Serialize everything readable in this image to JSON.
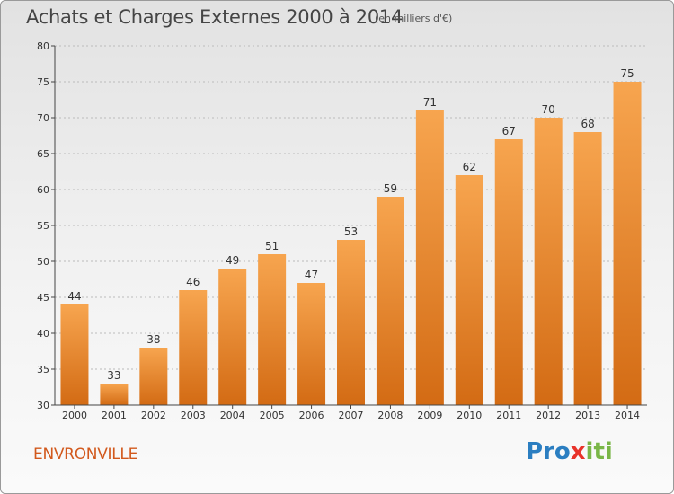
{
  "header": {
    "title": "Achats et Charges Externes 2000 à 2014",
    "subtitle": "(en milliers d'€)"
  },
  "footer": {
    "commune": "ENVRONVILLE",
    "logo": {
      "p1": "Pro",
      "x": "x",
      "p2": "iti"
    }
  },
  "colors": {
    "bar_light": "#f7a54f",
    "bar_dark": "#d36b14",
    "grid": "#bbbbbb",
    "commune": "#d2591d",
    "logo_p": "#2b7ec1",
    "logo_x": "#e8332a",
    "logo_i": "#7ab648"
  },
  "chart_data": {
    "type": "bar",
    "title": "Achats et Charges Externes 2000 à 2014",
    "subtitle": "(en milliers d'€)",
    "categories": [
      "2000",
      "2001",
      "2002",
      "2003",
      "2004",
      "2005",
      "2006",
      "2007",
      "2008",
      "2009",
      "2010",
      "2011",
      "2012",
      "2013",
      "2014"
    ],
    "values": [
      44,
      33,
      38,
      46,
      49,
      51,
      47,
      53,
      59,
      71,
      62,
      67,
      70,
      68,
      75
    ],
    "ylim": [
      30,
      80
    ],
    "yticks": [
      30,
      35,
      40,
      45,
      50,
      55,
      60,
      65,
      70,
      75,
      80
    ],
    "grid": true
  }
}
